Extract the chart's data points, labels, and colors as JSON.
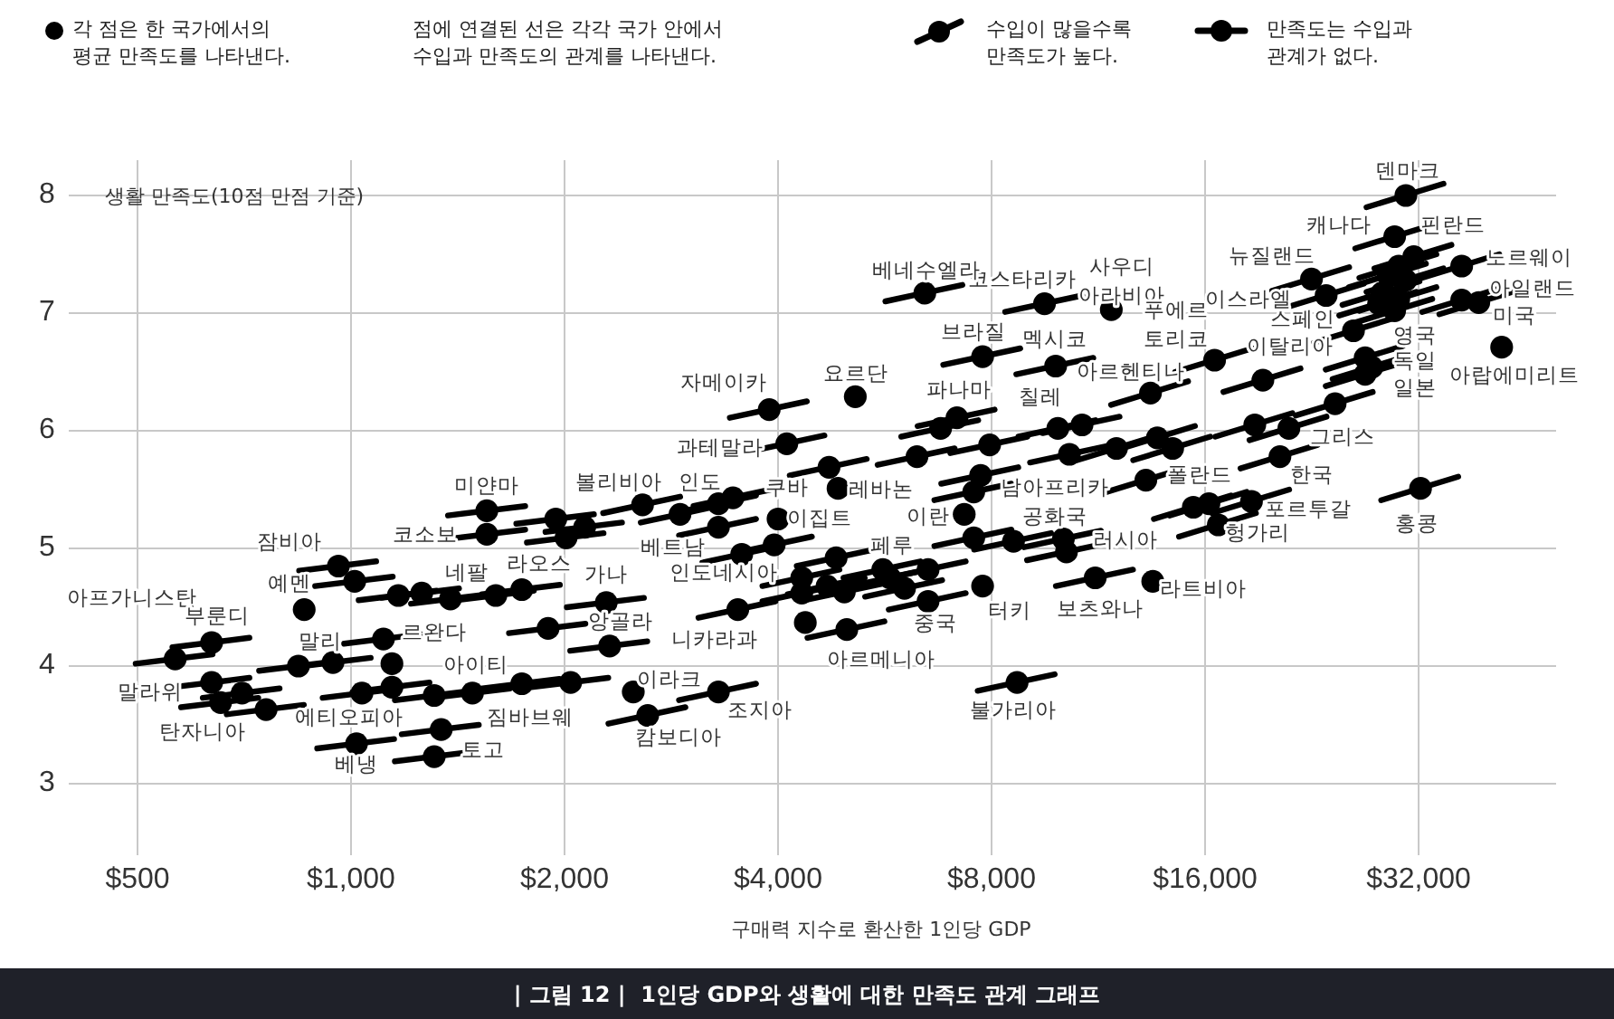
{
  "chart_data": {
    "type": "scatter",
    "title": "| 그림 12 |  1인당 GDP와 생활에 대한 만족도 관계 그래프",
    "xlabel": "구매력 지수로 환산한 1인당 GDP",
    "ylabel": "생활 만족도(10점 만점 기준)",
    "log": "x",
    "grid": true,
    "line_style": "solid",
    "xlim": [
      400,
      50000
    ],
    "ylim": [
      2.7,
      8.3
    ],
    "xticks": [
      {
        "value": 500,
        "label": "$500"
      },
      {
        "value": 1000,
        "label": "$1,000"
      },
      {
        "value": 2000,
        "label": "$2,000"
      },
      {
        "value": 4000,
        "label": "$4,000"
      },
      {
        "value": 8000,
        "label": "$8,000"
      },
      {
        "value": 16000,
        "label": "$16,000"
      },
      {
        "value": 32000,
        "label": "$32,000"
      }
    ],
    "yticks": [
      3,
      4,
      5,
      6,
      7,
      8
    ],
    "series": [
      {
        "type": "line",
        "color": "#000000",
        "x": [
          1370,
          1760
        ],
        "values": [
          5.28,
          5.36
        ]
      },
      {
        "type": "line",
        "color": "#000000",
        "x": [
          1370,
          1760
        ],
        "values": [
          5.08,
          5.16
        ]
      },
      {
        "type": "line",
        "color": "#000000",
        "x": [
          845,
          1085
        ],
        "values": [
          4.81,
          4.89
        ]
      },
      {
        "type": "line",
        "color": "#000000",
        "x": [
          890,
          1145
        ],
        "values": [
          4.68,
          4.76
        ]
      },
      {
        "type": "line",
        "color": "#000000",
        "x": [
          1025,
          1320
        ],
        "values": [
          4.56,
          4.64
        ]
      },
      {
        "type": "line",
        "color": "#000000",
        "x": [
          1105,
          1420
        ],
        "values": [
          4.58,
          4.66
        ]
      },
      {
        "type": "line",
        "color": "#000000",
        "x": [
          1215,
          1560
        ],
        "values": [
          4.53,
          4.61
        ]
      },
      {
        "type": "line",
        "color": "#000000",
        "x": [
          1410,
          1810
        ],
        "values": [
          4.56,
          4.64
        ]
      },
      {
        "type": "line",
        "color": "#000000",
        "x": [
          1530,
          1970
        ],
        "values": [
          4.61,
          4.69
        ]
      },
      {
        "type": "line",
        "color": "#000000",
        "x": [
          1710,
          2200
        ],
        "values": [
          5.21,
          5.29
        ]
      },
      {
        "type": "line",
        "color": "#000000",
        "x": [
          1770,
          2270
        ],
        "values": [
          5.05,
          5.13
        ]
      },
      {
        "type": "line",
        "color": "#000000",
        "x": [
          1880,
          2410
        ],
        "values": [
          5.14,
          5.22
        ]
      },
      {
        "type": "line",
        "color": "#000000",
        "x": [
          1670,
          2140
        ],
        "values": [
          4.28,
          4.36
        ]
      },
      {
        "type": "line",
        "color": "#000000",
        "x": [
          497,
          638
        ],
        "values": [
          4.02,
          4.1
        ]
      },
      {
        "type": "line",
        "color": "#000000",
        "x": [
          560,
          719
        ],
        "values": [
          4.16,
          4.24
        ]
      },
      {
        "type": "line",
        "color": "#000000",
        "x": [
          560,
          719
        ],
        "values": [
          3.82,
          3.9
        ]
      },
      {
        "type": "line",
        "color": "#000000",
        "x": [
          576,
          740
        ],
        "values": [
          3.65,
          3.73
        ]
      },
      {
        "type": "line",
        "color": "#000000",
        "x": [
          618,
          793
        ],
        "values": [
          3.73,
          3.81
        ]
      },
      {
        "type": "line",
        "color": "#000000",
        "x": [
          668,
          858
        ],
        "values": [
          3.59,
          3.67
        ]
      },
      {
        "type": "line",
        "color": "#000000",
        "x": [
          742,
          953
        ],
        "values": [
          3.96,
          4.04
        ]
      },
      {
        "type": "line",
        "color": "#000000",
        "x": [
          830,
          1066
        ],
        "values": [
          3.99,
          4.07
        ]
      },
      {
        "type": "line",
        "color": "#000000",
        "x": [
          978,
          1255
        ],
        "values": [
          4.19,
          4.27
        ]
      },
      {
        "type": "line",
        "color": "#000000",
        "x": [
          912,
          1171
        ],
        "values": [
          3.73,
          3.81
        ]
      },
      {
        "type": "line",
        "color": "#000000",
        "x": [
          1005,
          1290
        ],
        "values": [
          3.78,
          3.86
        ]
      },
      {
        "type": "line",
        "color": "#000000",
        "x": [
          1153,
          1480
        ],
        "values": [
          3.71,
          3.79
        ]
      },
      {
        "type": "line",
        "color": "#000000",
        "x": [
          1305,
          1676
        ],
        "values": [
          3.73,
          3.81
        ]
      },
      {
        "type": "line",
        "color": "#000000",
        "x": [
          1532,
          1967
        ],
        "values": [
          3.81,
          3.89
        ]
      },
      {
        "type": "line",
        "color": "#000000",
        "x": [
          1795,
          2305
        ],
        "values": [
          3.82,
          3.9
        ]
      },
      {
        "type": "line",
        "color": "#000000",
        "x": [
          1179,
          1514
        ],
        "values": [
          3.42,
          3.5
        ]
      },
      {
        "type": "line",
        "color": "#000000",
        "x": [
          1153,
          1480
        ],
        "values": [
          3.19,
          3.27
        ]
      },
      {
        "type": "line",
        "color": "#000000",
        "x": [
          896,
          1150
        ],
        "values": [
          3.3,
          3.38
        ]
      },
      {
        "type": "line",
        "color": "#000000",
        "x": [
          3420,
          4392
        ],
        "values": [
          6.11,
          6.25
        ]
      },
      {
        "type": "line",
        "color": "#000000",
        "x": [
          3621,
          4650
        ],
        "values": [
          5.82,
          5.96
        ]
      },
      {
        "type": "line",
        "color": "#000000",
        "x": [
          4154,
          5334
        ],
        "values": [
          5.62,
          5.76
        ]
      },
      {
        "type": "line",
        "color": "#000000",
        "x": [
          2267,
          2911
        ],
        "values": [
          5.3,
          5.44
        ]
      },
      {
        "type": "line",
        "color": "#000000",
        "x": [
          2561,
          3288
        ],
        "values": [
          5.22,
          5.36
        ]
      },
      {
        "type": "line",
        "color": "#000000",
        "x": [
          2900,
          3724
        ],
        "values": [
          5.31,
          5.45
        ]
      },
      {
        "type": "line",
        "color": "#000000",
        "x": [
          3040,
          3904
        ],
        "values": [
          5.36,
          5.5
        ]
      },
      {
        "type": "line",
        "color": "#000000",
        "x": [
          2900,
          3724
        ],
        "values": [
          5.11,
          5.25
        ]
      },
      {
        "type": "line",
        "color": "#000000",
        "x": [
          3128,
          4017
        ],
        "values": [
          4.88,
          5.02
        ]
      },
      {
        "type": "line",
        "color": "#000000",
        "x": [
          3476,
          4464
        ],
        "values": [
          4.96,
          5.1
        ]
      },
      {
        "type": "line",
        "color": "#000000",
        "x": [
          3802,
          4882
        ],
        "values": [
          4.68,
          4.82
        ]
      },
      {
        "type": "line",
        "color": "#000000",
        "x": [
          3802,
          4882
        ],
        "values": [
          4.55,
          4.69
        ]
      },
      {
        "type": "line",
        "color": "#000000",
        "x": [
          4250,
          5458
        ],
        "values": [
          4.85,
          4.99
        ]
      },
      {
        "type": "line",
        "color": "#000000",
        "x": [
          4127,
          5300
        ],
        "values": [
          4.61,
          4.75
        ]
      },
      {
        "type": "line",
        "color": "#000000",
        "x": [
          4365,
          5605
        ],
        "values": [
          4.56,
          4.7
        ]
      },
      {
        "type": "line",
        "color": "#000000",
        "x": [
          2015,
          2588
        ],
        "values": [
          4.5,
          4.58
        ]
      },
      {
        "type": "line",
        "color": "#000000",
        "x": [
          2037,
          2616
        ],
        "values": [
          4.13,
          4.21
        ]
      },
      {
        "type": "line",
        "color": "#000000",
        "x": [
          3089,
          3966
        ],
        "values": [
          4.41,
          4.55
        ]
      },
      {
        "type": "line",
        "color": "#000000",
        "x": [
          4400,
          5650
        ],
        "values": [
          4.24,
          4.38
        ]
      },
      {
        "type": "line",
        "color": "#000000",
        "x": [
          4946,
          6351
        ],
        "values": [
          4.75,
          4.89
        ]
      },
      {
        "type": "line",
        "color": "#000000",
        "x": [
          5306,
          6814
        ],
        "values": [
          4.59,
          4.73
        ]
      },
      {
        "type": "line",
        "color": "#000000",
        "x": [
          5729,
          7356
        ],
        "values": [
          4.75,
          4.89
        ]
      },
      {
        "type": "line",
        "color": "#000000",
        "x": [
          5060,
          6498
        ],
        "values": [
          4.68,
          4.82
        ]
      },
      {
        "type": "line",
        "color": "#000000",
        "x": [
          5729,
          7356
        ],
        "values": [
          4.48,
          4.62
        ]
      },
      {
        "type": "line",
        "color": "#000000",
        "x": [
          2900,
          3724
        ],
        "values": [
          3.71,
          3.85
        ]
      },
      {
        "type": "line",
        "color": "#000000",
        "x": [
          2306,
          2961
        ],
        "values": [
          3.51,
          3.65
        ]
      },
      {
        "type": "line",
        "color": "#000000",
        "x": [
          7647,
          9820
        ],
        "values": [
          3.79,
          3.93
        ]
      },
      {
        "type": "line",
        "color": "#000000",
        "x": [
          6644,
          8532
        ],
        "values": [
          5.02,
          5.16
        ]
      },
      {
        "type": "line",
        "color": "#000000",
        "x": [
          7559,
          9707
        ],
        "values": [
          4.99,
          5.13
        ]
      },
      {
        "type": "line",
        "color": "#000000",
        "x": [
          5526,
          7096
        ],
        "values": [
          5.71,
          5.85
        ]
      },
      {
        "type": "line",
        "color": "#000000",
        "x": [
          5966,
          7661
        ],
        "values": [
          5.95,
          6.09
        ]
      },
      {
        "type": "line",
        "color": "#000000",
        "x": [
          6292,
          8080
        ],
        "values": [
          6.04,
          6.18
        ]
      },
      {
        "type": "line",
        "color": "#000000",
        "x": [
          6996,
          8984
        ],
        "values": [
          5.81,
          5.95
        ]
      },
      {
        "type": "line",
        "color": "#000000",
        "x": [
          6794,
          8724
        ],
        "values": [
          5.55,
          5.69
        ]
      },
      {
        "type": "line",
        "color": "#000000",
        "x": [
          6644,
          8532
        ],
        "values": [
          5.41,
          5.55
        ]
      },
      {
        "type": "line",
        "color": "#000000",
        "x": [
          6838,
          8780
        ],
        "values": [
          6.56,
          6.7
        ]
      },
      {
        "type": "line",
        "color": "#000000",
        "x": [
          8668,
          11130
        ],
        "values": [
          6.48,
          6.62
        ]
      },
      {
        "type": "line",
        "color": "#000000",
        "x": [
          8730,
          11210
        ],
        "values": [
          5.95,
          6.09
        ]
      },
      {
        "type": "line",
        "color": "#000000",
        "x": [
          9442,
          12120
        ],
        "values": [
          5.98,
          6.12
        ]
      },
      {
        "type": "line",
        "color": "#000000",
        "x": [
          9064,
          11640
        ],
        "values": [
          5.73,
          5.87
        ]
      },
      {
        "type": "line",
        "color": "#000000",
        "x": [
          8888,
          11410
        ],
        "values": [
          5.01,
          5.15
        ]
      },
      {
        "type": "line",
        "color": "#000000",
        "x": [
          8976,
          11530
        ],
        "values": [
          4.9,
          5.04
        ]
      },
      {
        "type": "line",
        "color": "#000000",
        "x": [
          27020,
          34690
        ],
        "values": [
          7.9,
          8.1
        ]
      },
      {
        "type": "line",
        "color": "#000000",
        "x": [
          26050,
          33450
        ],
        "values": [
          7.55,
          7.75
        ]
      },
      {
        "type": "line",
        "color": "#000000",
        "x": [
          26400,
          33900
        ],
        "values": [
          7.3,
          7.5
        ]
      },
      {
        "type": "line",
        "color": "#000000",
        "x": [
          27720,
          35600
        ],
        "values": [
          7.38,
          7.58
        ]
      },
      {
        "type": "line",
        "color": "#000000",
        "x": [
          25520,
          32770
        ],
        "values": [
          7.22,
          7.42
        ]
      },
      {
        "type": "line",
        "color": "#000000",
        "x": [
          27020,
          34690
        ],
        "values": [
          7.18,
          7.38
        ]
      },
      {
        "type": "line",
        "color": "#000000",
        "x": [
          24990,
          32090
        ],
        "values": [
          7.07,
          7.27
        ]
      },
      {
        "type": "line",
        "color": "#000000",
        "x": [
          26400,
          33900
        ],
        "values": [
          7.02,
          7.22
        ]
      },
      {
        "type": "line",
        "color": "#000000",
        "x": [
          26050,
          33450
        ],
        "values": [
          6.92,
          7.12
        ]
      },
      {
        "type": "line",
        "color": "#000000",
        "x": [
          24730,
          31750
        ],
        "values": [
          6.98,
          7.18
        ]
      },
      {
        "type": "line",
        "color": "#000000",
        "x": [
          32380,
          41580
        ],
        "values": [
          7.3,
          7.5
        ]
      },
      {
        "type": "line",
        "color": "#000000",
        "x": [
          32380,
          41580
        ],
        "values": [
          7.01,
          7.21
        ]
      },
      {
        "type": "line",
        "color": "#000000",
        "x": [
          34230,
          43960
        ],
        "values": [
          6.99,
          7.19
        ]
      },
      {
        "type": "line",
        "color": "#000000",
        "x": [
          19890,
          25540
        ],
        "values": [
          7.19,
          7.39
        ]
      },
      {
        "type": "line",
        "color": "#000000",
        "x": [
          20860,
          26780
        ],
        "values": [
          7.05,
          7.25
        ]
      },
      {
        "type": "line",
        "color": "#000000",
        "x": [
          22790,
          29270
        ],
        "values": [
          6.75,
          6.95
        ]
      },
      {
        "type": "line",
        "color": "#000000",
        "x": [
          23670,
          30400
        ],
        "values": [
          6.52,
          6.72
        ]
      },
      {
        "type": "line",
        "color": "#000000",
        "x": [
          24200,
          31080
        ],
        "values": [
          6.44,
          6.64
        ]
      },
      {
        "type": "line",
        "color": "#000000",
        "x": [
          23670,
          30400
        ],
        "values": [
          6.38,
          6.58
        ]
      },
      {
        "type": "line",
        "color": "#000000",
        "x": [
          16980,
          21810
        ],
        "values": [
          6.33,
          6.53
        ]
      },
      {
        "type": "line",
        "color": "#000000",
        "x": [
          14520,
          18650
        ],
        "values": [
          6.5,
          6.7
        ]
      },
      {
        "type": "line",
        "color": "#000000",
        "x": [
          8360,
          10740
        ],
        "values": [
          7.01,
          7.15
        ]
      },
      {
        "type": "line",
        "color": "#000000",
        "x": [
          11790,
          15140
        ],
        "values": [
          6.22,
          6.42
        ]
      },
      {
        "type": "line",
        "color": "#000000",
        "x": [
          5667,
          7277
        ],
        "values": [
          7.1,
          7.24
        ]
      },
      {
        "type": "line",
        "color": "#000000",
        "x": [
          21470,
          27570
        ],
        "values": [
          6.13,
          6.33
        ]
      },
      {
        "type": "line",
        "color": "#000000",
        "x": [
          16540,
          21240
        ],
        "values": [
          5.95,
          6.15
        ]
      },
      {
        "type": "line",
        "color": "#000000",
        "x": [
          18480,
          23730
        ],
        "values": [
          5.92,
          6.12
        ]
      },
      {
        "type": "line",
        "color": "#000000",
        "x": [
          17950,
          23050
        ],
        "values": [
          5.68,
          5.88
        ]
      },
      {
        "type": "line",
        "color": "#000000",
        "x": [
          12060,
          15480
        ],
        "values": [
          5.84,
          6.04
        ]
      },
      {
        "type": "line",
        "color": "#000000",
        "x": [
          12670,
          16270
        ],
        "values": [
          5.75,
          5.95
        ]
      },
      {
        "type": "line",
        "color": "#000000",
        "x": [
          10560,
          13560
        ],
        "values": [
          5.75,
          5.95
        ]
      },
      {
        "type": "line",
        "color": "#000000",
        "x": [
          11620,
          14920
        ],
        "values": [
          5.48,
          5.68
        ]
      },
      {
        "type": "line",
        "color": "#000000",
        "x": [
          9856,
          12660
        ],
        "values": [
          4.68,
          4.82
        ]
      },
      {
        "type": "line",
        "color": "#000000",
        "x": [
          13550,
          17400
        ],
        "values": [
          5.25,
          5.45
        ]
      },
      {
        "type": "line",
        "color": "#000000",
        "x": [
          14260,
          18310
        ],
        "values": [
          5.28,
          5.48
        ]
      },
      {
        "type": "line",
        "color": "#000000",
        "x": [
          14700,
          18870
        ],
        "values": [
          5.1,
          5.3
        ]
      },
      {
        "type": "line",
        "color": "#000000",
        "x": [
          16370,
          21020
        ],
        "values": [
          5.3,
          5.5
        ]
      },
      {
        "type": "line",
        "color": "#000000",
        "x": [
          28340,
          36390
        ],
        "values": [
          5.41,
          5.61
        ]
      },
      {
        "color": "#000000",
        "marker": "circle",
        "x": [
          1554,
          1554,
          960,
          1012,
          859,
          1166,
          1258,
          1381,
          1600,
          1741,
          1944,
          2010,
          2135,
          1896,
          565,
          636,
          636,
          655,
          702,
          759,
          843,
          943,
          1111,
          1142,
          1036,
          1142,
          1310,
          1483,
          1741,
          2040,
          1340,
          1310,
          1018,
          3887,
          4115,
          4720,
          4860,
          5140,
          2576,
          2910,
          3296,
          3455,
          3296,
          4000,
          3555,
          3950,
          4320,
          4320,
          4830,
          4690,
          4960,
          2290,
          2315,
          3510,
          4370,
          5000,
          5620,
          6030,
          6510,
          5750,
          6510,
          2500,
          3296,
          2620,
          8690,
          7770,
          7320,
          7550,
          8590,
          6280,
          6780,
          7150,
          7950,
          7720,
          7550,
          7770,
          9850,
          9920,
          10730,
          10300,
          10100,
          10200,
          30700,
          29600,
          30000,
          31500,
          29000,
          30700,
          28400,
          30000,
          29600,
          28100,
          36800,
          36800,
          38900,
          41900,
          22600,
          23700,
          25900,
          26900,
          27500,
          26900,
          19300,
          16500,
          11800,
          9500,
          13400,
          6440,
          24400,
          18800,
          21000,
          20400,
          13700,
          14400,
          12000,
          13200,
          11200,
          13500,
          15400,
          16200,
          16700,
          18600,
          32200
        ],
        "values": [
          5.32,
          5.12,
          4.85,
          4.72,
          4.48,
          4.6,
          4.62,
          4.57,
          4.6,
          4.65,
          5.25,
          5.09,
          5.18,
          4.32,
          4.06,
          4.2,
          3.86,
          3.69,
          3.77,
          3.63,
          4.0,
          4.03,
          4.23,
          4.02,
          3.77,
          3.82,
          3.75,
          3.77,
          3.85,
          3.86,
          3.46,
          3.23,
          3.34,
          6.18,
          5.89,
          5.69,
          5.51,
          6.29,
          5.37,
          5.29,
          5.38,
          5.43,
          5.18,
          5.25,
          4.95,
          5.03,
          4.75,
          4.62,
          4.92,
          4.68,
          4.63,
          4.54,
          4.17,
          4.48,
          4.37,
          4.31,
          4.82,
          4.66,
          4.82,
          4.75,
          4.55,
          3.78,
          3.78,
          3.58,
          3.86,
          4.68,
          5.29,
          5.09,
          5.06,
          5.78,
          6.02,
          6.11,
          5.88,
          5.62,
          5.48,
          6.63,
          6.55,
          6.02,
          6.05,
          5.8,
          5.08,
          4.97,
          8.0,
          7.65,
          7.4,
          7.48,
          7.32,
          7.28,
          7.17,
          7.12,
          7.02,
          7.08,
          7.4,
          7.11,
          7.09,
          6.71,
          7.29,
          7.15,
          6.85,
          6.62,
          6.54,
          6.48,
          6.43,
          6.6,
          7.03,
          7.08,
          6.32,
          7.17,
          6.23,
          6.05,
          6.02,
          5.78,
          5.94,
          5.85,
          5.85,
          5.58,
          4.75,
          4.72,
          5.35,
          5.38,
          5.2,
          5.4,
          5.51
        ]
      }
    ],
    "annotations": [
      "각 점은 한 국가에서의\n평균 만족도를 나타낸다.",
      "점에 연결된 선은 각각 국가 안에서\n수입과 만족도의 관계를 나타낸다.",
      "수입이 많을수록\n만족도가 높다.",
      "만족도는 수입과\n관계가 없다.",
      "미얀마",
      "코소보",
      "잠비아",
      "예멘",
      "아프가니스탄",
      "부룬디",
      "말라위",
      "탄자니아",
      "말리",
      "르완다",
      "에티오피아",
      "아이티",
      "짐바브웨",
      "토고",
      "베냉",
      "네팔",
      "라오스",
      "볼리비아",
      "인도",
      "자메이카",
      "과테말라",
      "쿠바",
      "요르단",
      "레바논",
      "이집트",
      "베트남",
      "인도네시아",
      "가나",
      "앙골라",
      "니카라과",
      "아르메니아",
      "페루",
      "중국",
      "이라크",
      "조지아",
      "캄보디아",
      "불가리아",
      "터키",
      "이란",
      "파나마",
      "브라질",
      "멕시코",
      "칠레",
      "남아프리카\n공화국",
      "러시아",
      "보츠와나",
      "라트비아",
      "헝가리",
      "포르투갈",
      "폴란드",
      "홍콩",
      "한국",
      "그리스",
      "일본",
      "독일",
      "영국",
      "이탈리아",
      "스페인",
      "이스라엘",
      "뉴질랜드",
      "캐나다",
      "핀란드",
      "덴마크",
      "노르웨이",
      "아일랜드",
      "미국",
      "아랍에미리트",
      "사우디\n아라비아",
      "코스타리카",
      "베네수엘라",
      "아르헨티나",
      "푸에르\n토리코"
    ]
  }
}
